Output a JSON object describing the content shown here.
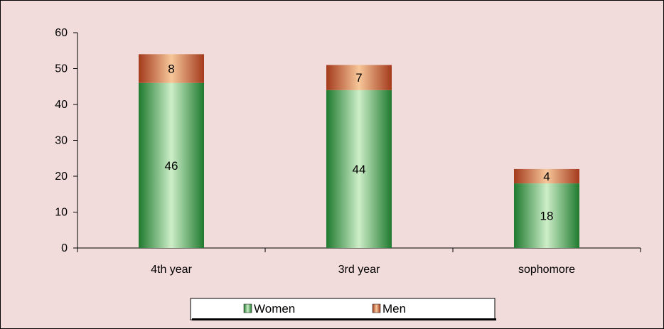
{
  "chart_data": {
    "type": "bar",
    "stacked": true,
    "categories": [
      "4th year",
      "3rd year",
      "sophomore"
    ],
    "series": [
      {
        "name": "Women",
        "values": [
          46,
          44,
          18
        ]
      },
      {
        "name": "Men",
        "values": [
          8,
          7,
          4
        ]
      }
    ],
    "ylim": [
      0,
      60
    ],
    "yticks": [
      "0",
      "10",
      "20",
      "30",
      "40",
      "50",
      "60"
    ],
    "grid": false,
    "legend_position": "bottom",
    "colors": {
      "background": "#f2dcdb",
      "women_dark": "#1e7a2e",
      "women_light": "#cdeec8",
      "men_dark": "#a33a1c",
      "men_light": "#f7c79a"
    }
  }
}
